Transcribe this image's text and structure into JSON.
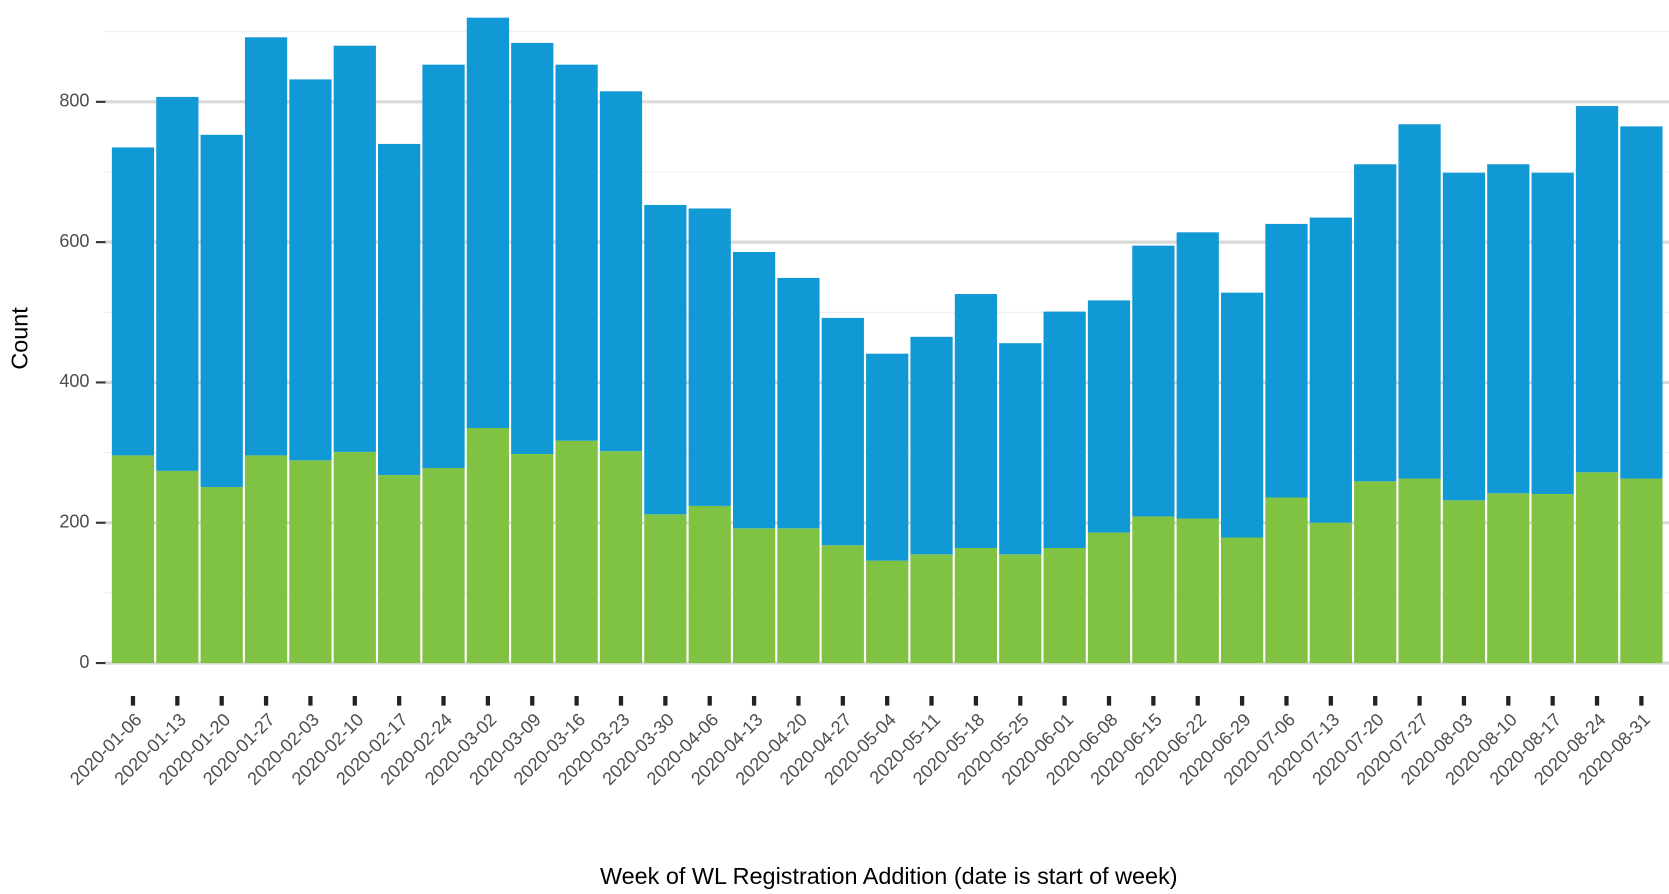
{
  "chart_data": {
    "type": "stacked_bar",
    "x_label": "Week of WL Registration Addition (date is start of week)",
    "y_label": "Count",
    "categories": [
      "2020-01-06",
      "2020-01-13",
      "2020-01-20",
      "2020-01-27",
      "2020-02-03",
      "2020-02-10",
      "2020-02-17",
      "2020-02-24",
      "2020-03-02",
      "2020-03-09",
      "2020-03-16",
      "2020-03-23",
      "2020-03-30",
      "2020-04-06",
      "2020-04-13",
      "2020-04-20",
      "2020-04-27",
      "2020-05-04",
      "2020-05-11",
      "2020-05-18",
      "2020-05-25",
      "2020-06-01",
      "2020-06-08",
      "2020-06-15",
      "2020-06-22",
      "2020-06-29",
      "2020-07-06",
      "2020-07-13",
      "2020-07-20",
      "2020-07-27",
      "2020-08-03",
      "2020-08-10",
      "2020-08-17",
      "2020-08-24",
      "2020-08-31"
    ],
    "series": [
      {
        "color": "#80c342",
        "values": [
          296,
          274,
          251,
          296,
          289,
          301,
          268,
          278,
          335,
          298,
          317,
          302,
          212,
          224,
          192,
          192,
          168,
          146,
          155,
          164,
          155,
          164,
          186,
          209,
          206,
          179,
          236,
          200,
          259,
          263,
          232,
          242,
          241,
          272,
          263
        ]
      },
      {
        "color": "#1199d6",
        "values": [
          439,
          533,
          502,
          596,
          543,
          579,
          472,
          575,
          585,
          586,
          536,
          513,
          441,
          424,
          394,
          357,
          324,
          295,
          310,
          362,
          301,
          337,
          331,
          386,
          408,
          349,
          390,
          435,
          452,
          505,
          467,
          469,
          458,
          522,
          502
        ]
      }
    ],
    "ylim": [
      0,
      930
    ],
    "yticks": [
      0,
      200,
      400,
      600,
      800
    ],
    "yminorticks": [
      100,
      300,
      500,
      700,
      900
    ],
    "grid": true
  }
}
